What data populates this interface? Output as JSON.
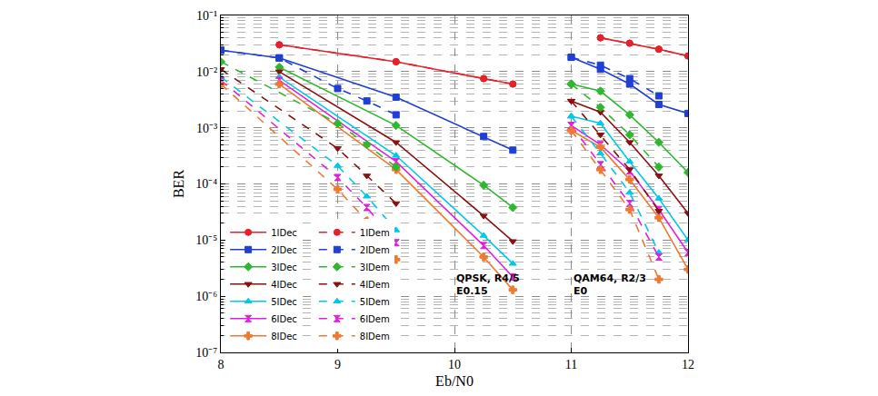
{
  "chart_data": {
    "type": "line",
    "x_label": "Eb/N0",
    "y_label": "BER",
    "log": "y",
    "grid": true,
    "legend": "lower left",
    "xlim": [
      8,
      12
    ],
    "xticks": [
      8,
      9,
      10,
      11,
      12
    ],
    "ylim": [
      1e-07,
      0.1
    ],
    "yticks": [
      {
        "value": 1e-07,
        "label": "10⁻⁷"
      },
      {
        "value": 1e-06,
        "label": "10⁻⁶"
      },
      {
        "value": 1e-05,
        "label": "10⁻⁵"
      },
      {
        "value": 0.0001,
        "label": "10⁻⁴"
      },
      {
        "value": 0.001,
        "label": "10⁻³"
      },
      {
        "value": 0.01,
        "label": "10⁻²"
      },
      {
        "value": 0.1,
        "label": "10⁻¹"
      }
    ],
    "annotations": [
      {
        "text": [
          "QPSK, R4/5",
          "E0.15"
        ],
        "x": 10.0,
        "y": 1.6e-06
      },
      {
        "text": [
          "QAM64, R2/3",
          "E0"
        ],
        "x": 11.0,
        "y": 1.6e-06
      }
    ],
    "series": [
      {
        "name": "1IDec",
        "color": "#e8202a",
        "marker": "circle",
        "line_style": "solid",
        "x": [
          8.5,
          9.5,
          10.25,
          10.5,
          null,
          11.25,
          11.5,
          11.75,
          12
        ],
        "values": [
          0.03,
          0.015,
          0.0075,
          0.006,
          null,
          0.04,
          0.032,
          0.025,
          0.019
        ]
      },
      {
        "name": "2IDec",
        "color": "#1f3fd6",
        "marker": "square",
        "line_style": "solid",
        "x": [
          8,
          8.5,
          9.5,
          10.25,
          10.5,
          null,
          11,
          11.25,
          11.5,
          11.75,
          12
        ],
        "values": [
          0.024,
          0.0175,
          0.0035,
          0.0007,
          0.0004,
          null,
          0.018,
          0.011,
          0.006,
          0.0026,
          0.0018
        ]
      },
      {
        "name": "3IDec",
        "color": "#2db82d",
        "marker": "diamond",
        "line_style": "solid",
        "x": [
          8.5,
          9.5,
          10.25,
          10.5,
          null,
          11,
          11.25,
          11.5,
          11.75,
          12
        ],
        "values": [
          0.012,
          0.0011,
          9.5e-05,
          3.8e-05,
          null,
          0.006,
          0.0045,
          0.0017,
          0.00055,
          0.00016
        ]
      },
      {
        "name": "4IDec",
        "color": "#8b1010",
        "marker": "triangle-down",
        "line_style": "solid",
        "x": [
          8.5,
          9.5,
          10.25,
          10.5,
          null,
          11,
          11.25,
          11.5,
          11.75,
          12
        ],
        "values": [
          0.01,
          0.00055,
          2.7e-05,
          9.5e-06,
          null,
          0.003,
          0.0019,
          0.00055,
          0.00014,
          3e-05
        ]
      },
      {
        "name": "5IDec",
        "color": "#00c8e8",
        "marker": "triangle-up",
        "line_style": "solid",
        "x": [
          8.5,
          9.5,
          10.25,
          10.5,
          null,
          11,
          11.25,
          11.5,
          11.75,
          12
        ],
        "values": [
          0.008,
          0.00032,
          1.2e-05,
          3.8e-06,
          null,
          0.0016,
          0.0012,
          0.00025,
          5.5e-05,
          1e-05
        ]
      },
      {
        "name": "6IDec",
        "color": "#e020e0",
        "marker": "hourglass",
        "line_style": "solid",
        "x": [
          8.5,
          9.5,
          10.25,
          10.5,
          null,
          11,
          11.25,
          11.5,
          11.75,
          12
        ],
        "values": [
          0.007,
          0.00025,
          8e-06,
          2.2e-06,
          null,
          0.0011,
          0.0005,
          0.00017,
          3.5e-05,
          6e-06
        ]
      },
      {
        "name": "8IDec",
        "color": "#f07830",
        "marker": "cross",
        "line_style": "solid",
        "x": [
          8.5,
          9.5,
          10.25,
          10.5,
          null,
          11,
          11.25,
          11.5,
          11.75,
          12
        ],
        "values": [
          0.006,
          0.00018,
          5e-06,
          1.3e-06,
          null,
          0.0009,
          0.00045,
          0.00012,
          2.5e-05,
          3e-06
        ]
      },
      {
        "name": "1IDem",
        "color": "#e8202a",
        "marker": "circle",
        "line_style": "dash",
        "x": [
          8.5,
          9.5,
          10.25,
          10.5,
          null,
          11.25,
          11.5,
          11.75,
          12
        ],
        "values": [
          0.03,
          0.015,
          0.0075,
          0.006,
          null,
          0.04,
          0.032,
          0.025,
          0.019
        ]
      },
      {
        "name": "2IDem",
        "color": "#1f3fd6",
        "marker": "square",
        "line_style": "dash",
        "x": [
          8,
          8.5,
          9,
          9.25,
          9.5,
          null,
          11,
          11.25,
          11.5,
          11.75
        ],
        "values": [
          0.024,
          0.0175,
          0.005,
          0.003,
          0.0017,
          null,
          0.018,
          0.013,
          0.0075,
          0.0037
        ]
      },
      {
        "name": "3IDem",
        "color": "#2db82d",
        "marker": "diamond",
        "line_style": "dash",
        "x": [
          8,
          9,
          9.25,
          9.5,
          null,
          11,
          11.25,
          11.5,
          11.75
        ],
        "values": [
          0.015,
          0.0012,
          0.0005,
          0.0002,
          null,
          0.006,
          0.0023,
          0.00075,
          0.0002
        ]
      },
      {
        "name": "4IDem",
        "color": "#8b1010",
        "marker": "triangle-down",
        "line_style": "dash",
        "x": [
          8,
          9,
          9.25,
          9.5,
          null,
          11,
          11.25,
          11.5,
          11.75
        ],
        "values": [
          0.011,
          0.00043,
          0.00014,
          4.5e-05,
          null,
          0.003,
          0.00075,
          0.00018,
          3.3e-05
        ]
      },
      {
        "name": "5IDem",
        "color": "#00c8e8",
        "marker": "triangle-up",
        "line_style": "dash",
        "x": [
          8,
          9,
          9.25,
          9.5,
          null,
          11,
          11.25,
          11.5,
          11.75
        ],
        "values": [
          0.008,
          0.00021,
          6e-05,
          1.5e-05,
          null,
          0.0016,
          0.00035,
          7e-05,
          6e-06
        ]
      },
      {
        "name": "6IDem",
        "color": "#e020e0",
        "marker": "hourglass",
        "line_style": "dash",
        "x": [
          8,
          9,
          9.25,
          9.5,
          null,
          11,
          11.25,
          11.5,
          11.75
        ],
        "values": [
          0.007,
          0.00013,
          3.8e-05,
          9e-06,
          null,
          0.0011,
          0.00022,
          4.5e-05,
          5e-06
        ]
      },
      {
        "name": "8IDem",
        "color": "#f07830",
        "marker": "cross",
        "line_style": "dash",
        "x": [
          8,
          9,
          9.25,
          9.5,
          null,
          11,
          11.25,
          11.5,
          11.75
        ],
        "values": [
          0.006,
          8e-05,
          2.2e-05,
          4.5e-06,
          null,
          0.0009,
          0.00018,
          3.5e-05,
          2e-06
        ]
      }
    ]
  }
}
